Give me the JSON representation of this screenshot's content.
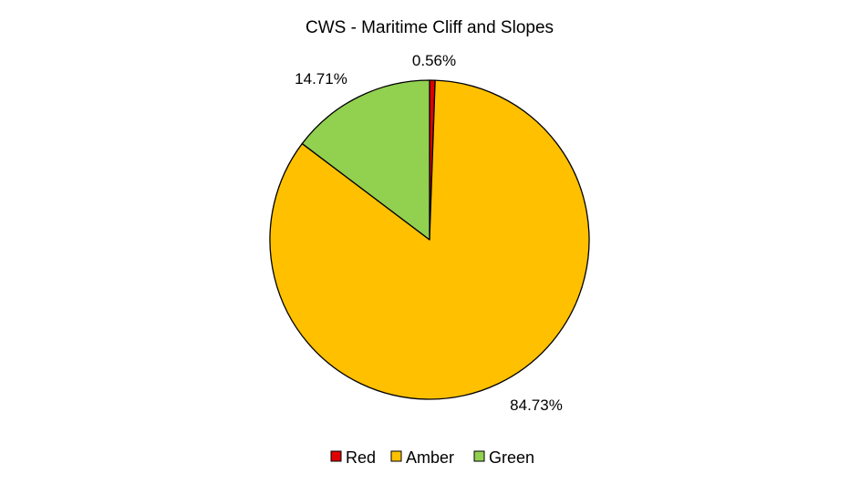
{
  "chart_data": {
    "type": "pie",
    "title": "CWS - Maritime Cliff and Slopes",
    "categories": [
      "Red",
      "Amber",
      "Green"
    ],
    "values": [
      0.56,
      84.73,
      14.71
    ],
    "labels": [
      "0.56%",
      "84.73%",
      "14.71%"
    ],
    "colors": [
      "#e00000",
      "#ffc000",
      "#92d050"
    ],
    "legend": {
      "position": "bottom"
    }
  }
}
